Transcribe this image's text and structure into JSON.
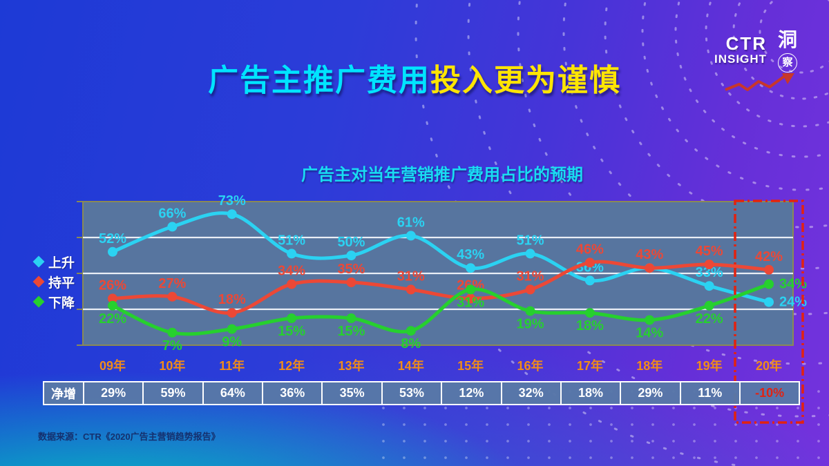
{
  "slide": {
    "title": {
      "highlight": "广告主推广费用",
      "rest": "投入更为谨慎"
    },
    "source": "数据来源：CTR《2020广告主营销趋势报告》",
    "logo": {
      "line1": "CTR",
      "line2": "INSIGHT",
      "seal_top": "洞",
      "seal_bottom": "察"
    }
  },
  "colors": {
    "title_highlight": "#00e4ff",
    "title_rest": "#ffe503",
    "plot_bg": "#57759f",
    "plot_border": "#8a8a55",
    "gridline": "#e9eef5",
    "year_label": "#f08c1a",
    "table_bg": "#5878a7",
    "table_neg": "#e02314",
    "highlight_box": "#e3220f",
    "series_up": "#2bd2f2",
    "series_flat": "#ec4836",
    "series_down": "#26d02e"
  },
  "chart_data": {
    "type": "line",
    "title": "广告主对当年营销推广费用占比的预期",
    "categories": [
      "09年",
      "10年",
      "11年",
      "12年",
      "13年",
      "14年",
      "15年",
      "16年",
      "17年",
      "18年",
      "19年",
      "20年"
    ],
    "series": [
      {
        "name": "上升",
        "color": "#2bd2f2",
        "values": [
          52,
          66,
          73,
          51,
          50,
          61,
          43,
          51,
          36,
          43,
          33,
          24
        ],
        "label_pos": [
          "a",
          "a",
          "a",
          "a",
          "a",
          "a",
          "a",
          "a",
          "a",
          null,
          "a",
          "r"
        ]
      },
      {
        "name": "持平",
        "color": "#ec4836",
        "values": [
          26,
          27,
          18,
          34,
          35,
          31,
          26,
          31,
          46,
          43,
          45,
          42
        ],
        "label_pos": [
          "a",
          "a",
          "a",
          "a",
          "a",
          "a",
          "a",
          "a",
          "a",
          "a",
          "a",
          "a"
        ]
      },
      {
        "name": "下降",
        "color": "#26d02e",
        "values": [
          22,
          7,
          9,
          15,
          15,
          8,
          31,
          19,
          18,
          14,
          22,
          34
        ],
        "label_pos": [
          "b",
          "b",
          "b",
          "b",
          "b",
          "b",
          "b",
          "b",
          "b",
          "b",
          "b",
          "r"
        ]
      }
    ],
    "ylim": [
      0,
      80
    ],
    "grid_interval": 20,
    "grid_on": true,
    "legend_position": "left",
    "highlight_column": "20年",
    "unit": "%"
  },
  "table": {
    "row_label": "净增",
    "values": [
      "29%",
      "59%",
      "64%",
      "36%",
      "35%",
      "53%",
      "12%",
      "32%",
      "18%",
      "29%",
      "11%",
      "-10%"
    ]
  }
}
